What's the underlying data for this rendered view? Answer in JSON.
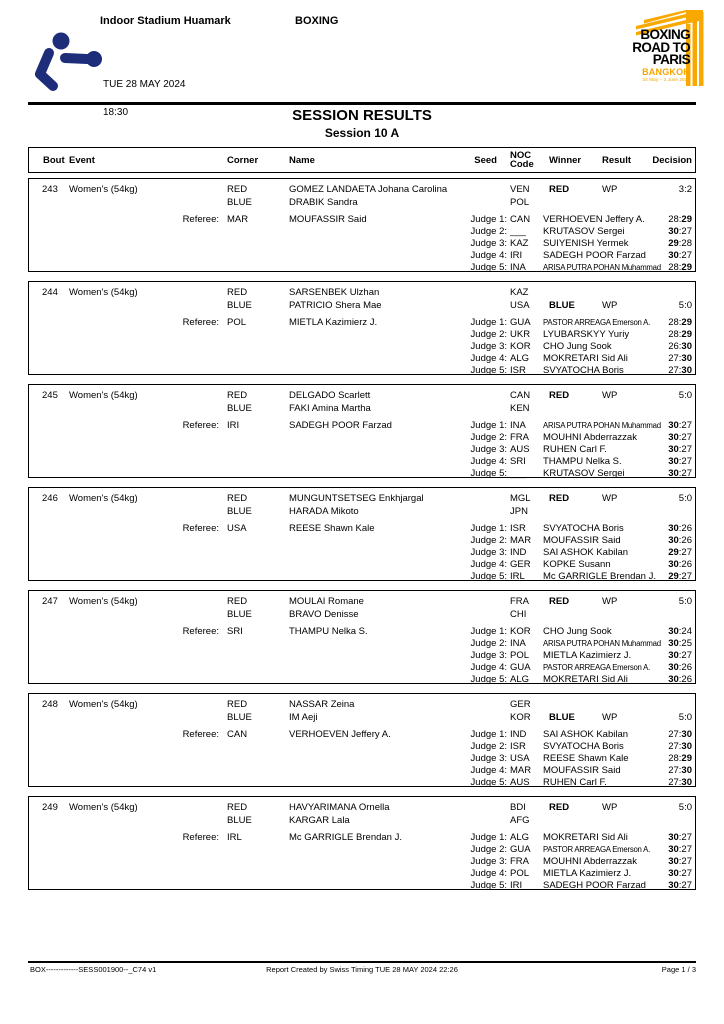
{
  "header": {
    "venue": "Indoor Stadium Huamark",
    "sport": "BOXING",
    "date": "TUE 28 MAY 2024",
    "time": "18:30",
    "logo": {
      "line1": "BOXING",
      "line2": "ROAD TO",
      "line3": "PARIS",
      "line4": "BANGKOK",
      "line5": "24 May – 3 June 2024"
    }
  },
  "title": "SESSION RESULTS",
  "subtitle": "Session 10 A",
  "table_header": {
    "bout": "Bout",
    "event": "Event",
    "corner": "Corner",
    "name": "Name",
    "seed": "Seed",
    "noc_line1": "NOC",
    "noc_line2": "Code",
    "winner": "Winner",
    "result": "Result",
    "decision": "Decision"
  },
  "labels": {
    "red": "RED",
    "blue": "BLUE",
    "referee": "Referee:"
  },
  "colors": {
    "accent_orange": "#F7A600",
    "pictogram_blue": "#1D2D7A",
    "text": "#000000"
  },
  "bouts": [
    {
      "bout": "243",
      "event": "Women's (54kg)",
      "red": {
        "name": "GOMEZ LANDAETA Johana Carolina",
        "noc": "VEN"
      },
      "blue": {
        "name": "DRABIK Sandra",
        "noc": "POL"
      },
      "winner": "RED",
      "result": "WP",
      "decision": "3:2",
      "referee": {
        "noc": "MAR",
        "name": "MOUFASSIR Said"
      },
      "judges": [
        {
          "label": "Judge 1:",
          "noc": "CAN",
          "name": "VERHOEVEN Jeffery A.",
          "score": "28:29"
        },
        {
          "label": "Judge 2:",
          "noc": "___",
          "name": "KRUTASOV Sergei",
          "score": "30:27"
        },
        {
          "label": "Judge 3:",
          "noc": "KAZ",
          "name": "SUIYENISH Yermek",
          "score": "29:28"
        },
        {
          "label": "Judge 4:",
          "noc": "IRI",
          "name": "SADEGH POOR Farzad",
          "score": "30:27"
        },
        {
          "label": "Judge 5:",
          "noc": "INA",
          "name": "ARISA PUTRA POHAN Muhammad",
          "score": "28:29"
        }
      ]
    },
    {
      "bout": "244",
      "event": "Women's (54kg)",
      "red": {
        "name": "SARSENBEK Ulzhan",
        "noc": "KAZ"
      },
      "blue": {
        "name": "PATRICIO Shera Mae",
        "noc": "USA"
      },
      "winner": "BLUE",
      "result": "WP",
      "decision": "5:0",
      "referee": {
        "noc": "POL",
        "name": "MIETLA Kazimierz J."
      },
      "judges": [
        {
          "label": "Judge 1:",
          "noc": "GUA",
          "name": "PASTOR ARREAGA Emerson A.",
          "score": "28:29"
        },
        {
          "label": "Judge 2:",
          "noc": "UKR",
          "name": "LYUBARSKYY Yuriy",
          "score": "28:29"
        },
        {
          "label": "Judge 3:",
          "noc": "KOR",
          "name": "CHO Jung Sook",
          "score": "26:30"
        },
        {
          "label": "Judge 4:",
          "noc": "ALG",
          "name": "MOKRETARI Sid Ali",
          "score": "27:30"
        },
        {
          "label": "Judge 5:",
          "noc": "ISR",
          "name": "SVYATOCHA Boris",
          "score": "27:30"
        }
      ]
    },
    {
      "bout": "245",
      "event": "Women's (54kg)",
      "red": {
        "name": "DELGADO Scarlett",
        "noc": "CAN"
      },
      "blue": {
        "name": "FAKI Amina Martha",
        "noc": "KEN"
      },
      "winner": "RED",
      "result": "WP",
      "decision": "5:0",
      "referee": {
        "noc": "IRI",
        "name": "SADEGH POOR Farzad"
      },
      "judges": [
        {
          "label": "Judge 1:",
          "noc": "INA",
          "name": "ARISA PUTRA POHAN Muhammad",
          "score": "30:27"
        },
        {
          "label": "Judge 2:",
          "noc": "FRA",
          "name": "MOUHNI Abderrazzak",
          "score": "30:27"
        },
        {
          "label": "Judge 3:",
          "noc": "AUS",
          "name": "RUHEN Carl F.",
          "score": "30:27"
        },
        {
          "label": "Judge 4:",
          "noc": "SRI",
          "name": "THAMPU Nelka S.",
          "score": "30:27"
        },
        {
          "label": "Judge 5:",
          "noc": "___",
          "name": "KRUTASOV Sergei",
          "score": "30:27"
        }
      ]
    },
    {
      "bout": "246",
      "event": "Women's (54kg)",
      "red": {
        "name": "MUNGUNTSETSEG Enkhjargal",
        "noc": "MGL"
      },
      "blue": {
        "name": "HARADA Mikoto",
        "noc": "JPN"
      },
      "winner": "RED",
      "result": "WP",
      "decision": "5:0",
      "referee": {
        "noc": "USA",
        "name": "REESE Shawn Kale"
      },
      "judges": [
        {
          "label": "Judge 1:",
          "noc": "ISR",
          "name": "SVYATOCHA Boris",
          "score": "30:26"
        },
        {
          "label": "Judge 2:",
          "noc": "MAR",
          "name": "MOUFASSIR Said",
          "score": "30:26"
        },
        {
          "label": "Judge 3:",
          "noc": "IND",
          "name": "SAI ASHOK Kabilan",
          "score": "29:27"
        },
        {
          "label": "Judge 4:",
          "noc": "GER",
          "name": "KOPKE Susann",
          "score": "30:26"
        },
        {
          "label": "Judge 5:",
          "noc": "IRL",
          "name": "Mc GARRIGLE Brendan J.",
          "score": "29:27"
        }
      ]
    },
    {
      "bout": "247",
      "event": "Women's (54kg)",
      "red": {
        "name": "MOULAI Romane",
        "noc": "FRA"
      },
      "blue": {
        "name": "BRAVO Denisse",
        "noc": "CHI"
      },
      "winner": "RED",
      "result": "WP",
      "decision": "5:0",
      "referee": {
        "noc": "SRI",
        "name": "THAMPU Nelka S."
      },
      "judges": [
        {
          "label": "Judge 1:",
          "noc": "KOR",
          "name": "CHO Jung Sook",
          "score": "30:24"
        },
        {
          "label": "Judge 2:",
          "noc": "INA",
          "name": "ARISA PUTRA POHAN Muhammad",
          "score": "30:25"
        },
        {
          "label": "Judge 3:",
          "noc": "POL",
          "name": "MIETLA Kazimierz J.",
          "score": "30:27"
        },
        {
          "label": "Judge 4:",
          "noc": "GUA",
          "name": "PASTOR ARREAGA Emerson A.",
          "score": "30:26"
        },
        {
          "label": "Judge 5:",
          "noc": "ALG",
          "name": "MOKRETARI Sid Ali",
          "score": "30:26"
        }
      ]
    },
    {
      "bout": "248",
      "event": "Women's (54kg)",
      "red": {
        "name": "NASSAR Zeina",
        "noc": "GER"
      },
      "blue": {
        "name": "IM Aeji",
        "noc": "KOR"
      },
      "winner": "BLUE",
      "result": "WP",
      "decision": "5:0",
      "referee": {
        "noc": "CAN",
        "name": "VERHOEVEN Jeffery A."
      },
      "judges": [
        {
          "label": "Judge 1:",
          "noc": "IND",
          "name": "SAI ASHOK Kabilan",
          "score": "27:30"
        },
        {
          "label": "Judge 2:",
          "noc": "ISR",
          "name": "SVYATOCHA Boris",
          "score": "27:30"
        },
        {
          "label": "Judge 3:",
          "noc": "USA",
          "name": "REESE Shawn Kale",
          "score": "28:29"
        },
        {
          "label": "Judge 4:",
          "noc": "MAR",
          "name": "MOUFASSIR Said",
          "score": "27:30"
        },
        {
          "label": "Judge 5:",
          "noc": "AUS",
          "name": "RUHEN Carl F.",
          "score": "27:30"
        }
      ]
    },
    {
      "bout": "249",
      "event": "Women's (54kg)",
      "red": {
        "name": "HAVYARIMANA Ornella",
        "noc": "BDI"
      },
      "blue": {
        "name": "KARGAR Lala",
        "noc": "AFG"
      },
      "winner": "RED",
      "result": "WP",
      "decision": "5:0",
      "referee": {
        "noc": "IRL",
        "name": "Mc GARRIGLE Brendan J."
      },
      "judges": [
        {
          "label": "Judge 1:",
          "noc": "ALG",
          "name": "MOKRETARI Sid Ali",
          "score": "30:27"
        },
        {
          "label": "Judge 2:",
          "noc": "GUA",
          "name": "PASTOR ARREAGA Emerson A.",
          "score": "30:27"
        },
        {
          "label": "Judge 3:",
          "noc": "FRA",
          "name": "MOUHNI Abderrazzak",
          "score": "30:27"
        },
        {
          "label": "Judge 4:",
          "noc": "POL",
          "name": "MIETLA Kazimierz J.",
          "score": "30:27"
        },
        {
          "label": "Judge 5:",
          "noc": "IRI",
          "name": "SADEGH POOR Farzad",
          "score": "30:27"
        }
      ]
    }
  ],
  "footer": {
    "left": "BOX-------------SESS001900--_C74 v1",
    "center": "Report Created by Swiss Timing  TUE 28 MAY 2024 22:26",
    "right": "Page 1 / 3"
  }
}
